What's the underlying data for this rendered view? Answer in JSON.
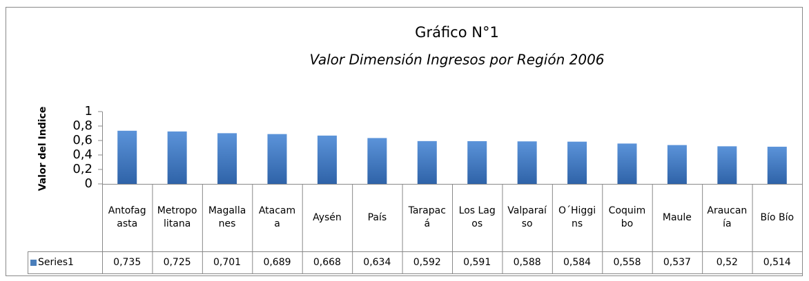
{
  "chart_data": {
    "type": "bar",
    "title": "Gráfico N°1",
    "subtitle": "Valor Dimensión Ingresos por Región 2006",
    "y_label": "Valor del Indice",
    "categories": [
      "Antofagasta",
      "Metropolitana",
      "Magallanes",
      "Atacama",
      "Aysén",
      "País",
      "Tarapacá",
      "Los Lagos",
      "Valparaíso",
      "O´Higgins",
      "Coquimbo",
      "Maule",
      "Araucanía",
      "Bío Bío"
    ],
    "series": [
      {
        "name": "Series1",
        "color": "#4a7ebb",
        "values": [
          0.735,
          0.725,
          0.701,
          0.689,
          0.668,
          0.634,
          0.592,
          0.591,
          0.588,
          0.584,
          0.558,
          0.537,
          0.52,
          0.514
        ],
        "value_labels": [
          "0,735",
          "0,725",
          "0,701",
          "0,689",
          "0,668",
          "0,634",
          "0,592",
          "0,591",
          "0,588",
          "0,584",
          "0,558",
          "0,537",
          "0,52",
          "0,514"
        ]
      }
    ],
    "ylim": [
      0,
      1
    ],
    "yticks": [
      0,
      {
        "value": 0.2,
        "label": "0,2"
      },
      {
        "value": 0.4,
        "label": "0,4"
      },
      {
        "value": 0.6,
        "label": "0,6"
      },
      {
        "value": 0.8,
        "label": "0,8"
      },
      1
    ],
    "grid": false
  }
}
